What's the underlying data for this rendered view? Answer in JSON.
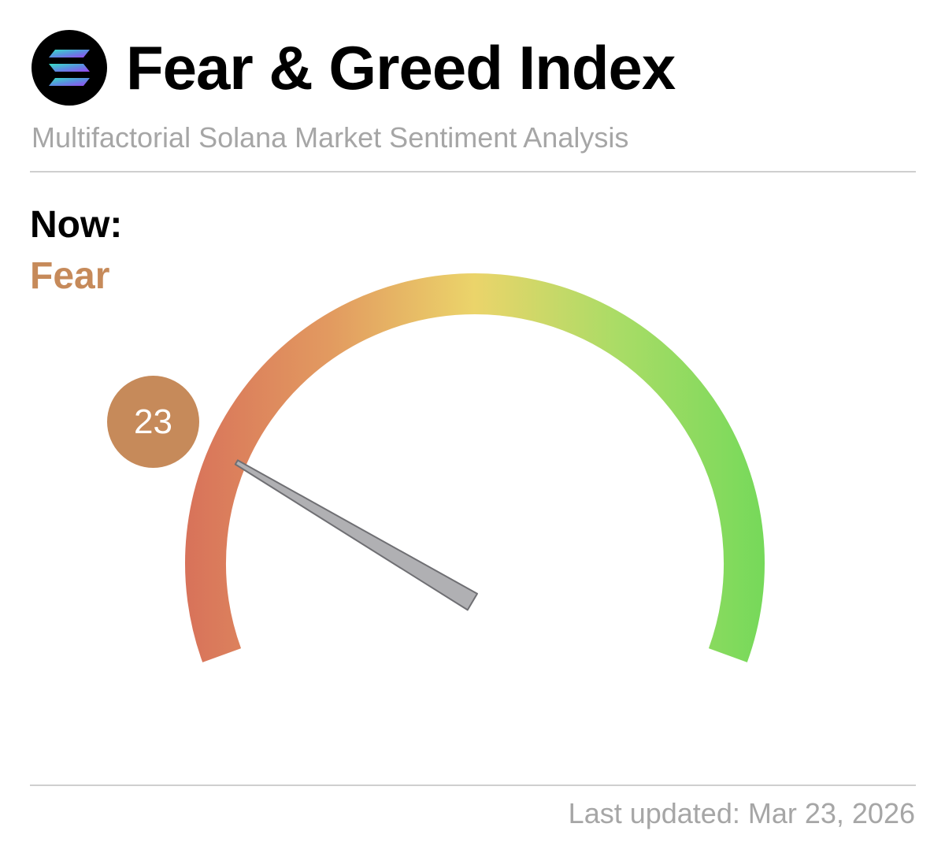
{
  "header": {
    "title": "Fear & Greed Index",
    "subtitle": "Multifactorial Solana Market Sentiment Analysis",
    "logo_icon": "solana-logo-icon"
  },
  "current": {
    "label": "Now:",
    "state": "Fear",
    "value": "23",
    "value_number": 23,
    "accent_color": "#c68a5a"
  },
  "gauge": {
    "min": 0,
    "max": 100,
    "colors": [
      "#d8725a",
      "#e29a60",
      "#ebd46a",
      "#a9dc66",
      "#76d95a"
    ]
  },
  "footer": {
    "updated": "Last updated: Mar 23, 2026"
  }
}
